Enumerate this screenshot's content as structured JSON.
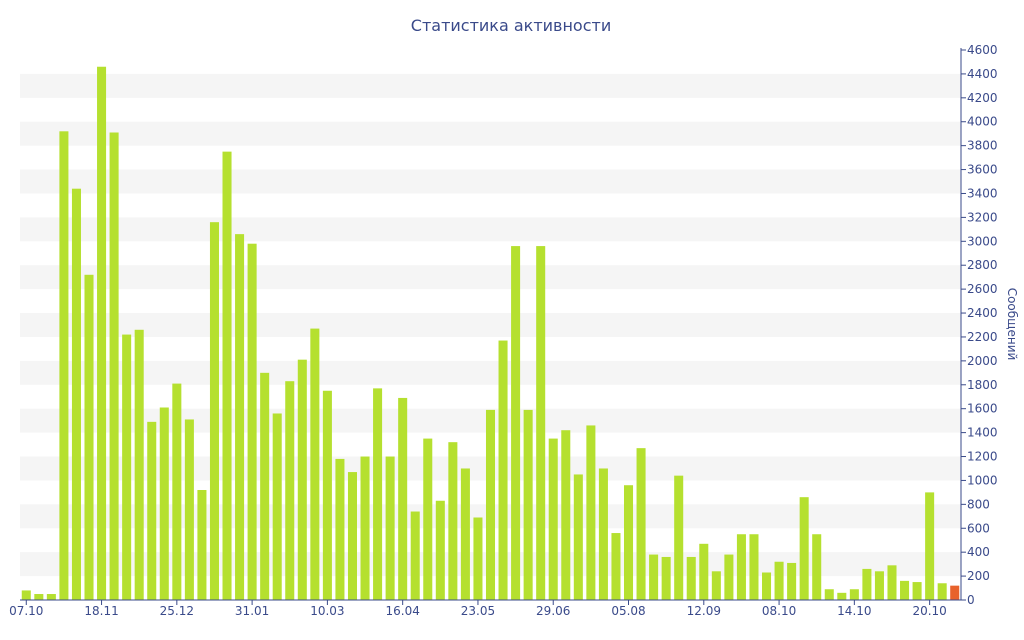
{
  "chart_data": {
    "type": "bar",
    "title": "Статистика активности",
    "xlabel": "",
    "ylabel": "Сообщений",
    "ylim": [
      0,
      4600
    ],
    "y_ticks": [
      0,
      200,
      400,
      600,
      800,
      1000,
      1200,
      1400,
      1600,
      1800,
      2000,
      2200,
      2400,
      2600,
      2800,
      3000,
      3200,
      3400,
      3600,
      3800,
      4000,
      4200,
      4400,
      4600
    ],
    "y_axis_side": "right",
    "grid": "horizontal alternating bands",
    "x_tick_labels": [
      {
        "label": "07.10",
        "index": 0
      },
      {
        "label": "18.11",
        "index": 6
      },
      {
        "label": "25.12",
        "index": 12
      },
      {
        "label": "31.01",
        "index": 18
      },
      {
        "label": "10.03",
        "index": 24
      },
      {
        "label": "16.04",
        "index": 30
      },
      {
        "label": "23.05",
        "index": 36
      },
      {
        "label": "29.06",
        "index": 42
      },
      {
        "label": "05.08",
        "index": 48
      },
      {
        "label": "12.09",
        "index": 54
      },
      {
        "label": "08.10",
        "index": 60
      },
      {
        "label": "14.10",
        "index": 66
      },
      {
        "label": "20.10",
        "index": 72
      }
    ],
    "values": [
      80,
      50,
      50,
      3920,
      3440,
      2720,
      4460,
      3910,
      2220,
      2260,
      1490,
      1610,
      1810,
      1510,
      920,
      3160,
      3750,
      3060,
      2980,
      1900,
      1560,
      1830,
      2010,
      2270,
      1750,
      1180,
      1070,
      1200,
      1770,
      1200,
      1690,
      740,
      1350,
      830,
      1320,
      1100,
      690,
      1590,
      2170,
      2960,
      1590,
      2960,
      1350,
      1420,
      1050,
      1460,
      1100,
      560,
      960,
      1270,
      380,
      360,
      1040,
      360,
      470,
      240,
      380,
      550,
      550,
      230,
      320,
      310,
      860,
      550,
      90,
      60,
      90,
      260,
      240,
      290,
      160,
      150,
      900,
      140,
      120
    ],
    "bar_color": "#b5e02f",
    "highlight_color": "#e8622c",
    "highlight_index": 74
  }
}
